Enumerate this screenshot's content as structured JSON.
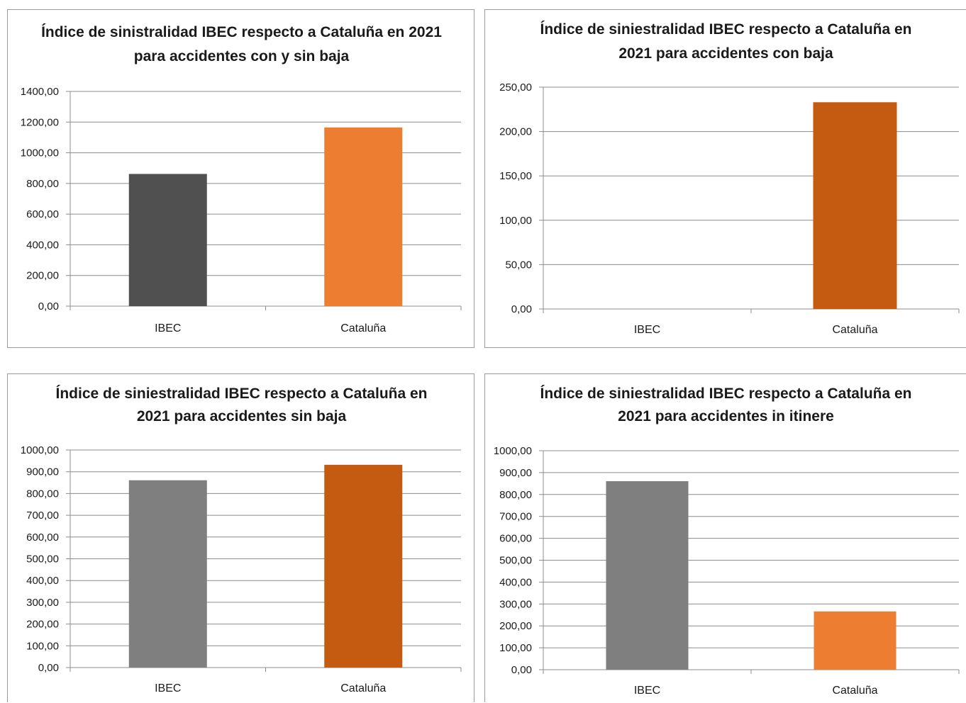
{
  "chart_data": [
    {
      "type": "bar",
      "title": [
        "Índice de sinistralidad IBEC respecto a Cataluña en 2021",
        "para accidentes con y sin baja"
      ],
      "categories": [
        "IBEC",
        "Cataluña"
      ],
      "values": [
        862,
        1165
      ],
      "colors": [
        "#505050",
        "#ED7D31"
      ],
      "ylim": [
        0,
        1400
      ],
      "yticks": [
        0,
        200,
        400,
        600,
        800,
        1000,
        1200,
        1400
      ],
      "ytick_labels": [
        "0,00",
        "200,00",
        "400,00",
        "600,00",
        "800,00",
        "1000,00",
        "1200,00",
        "1400,00"
      ],
      "xlabel": "",
      "ylabel": "",
      "grid": true,
      "legend": "none"
    },
    {
      "type": "bar",
      "title": [
        "Índice de siniestralidad IBEC respecto a Cataluña en",
        "2021 para accidentes con baja"
      ],
      "categories": [
        "IBEC",
        "Cataluña"
      ],
      "values": [
        0,
        233
      ],
      "colors": [
        "#505050",
        "#C55A11"
      ],
      "ylim": [
        0,
        250
      ],
      "yticks": [
        0,
        50,
        100,
        150,
        200,
        250
      ],
      "ytick_labels": [
        "0,00",
        "50,00",
        "100,00",
        "150,00",
        "200,00",
        "250,00"
      ],
      "xlabel": "",
      "ylabel": "",
      "grid": true,
      "legend": "none"
    },
    {
      "type": "bar",
      "title": [
        "Índice de siniestralidad IBEC respecto a Cataluña en",
        "2021 para accidentes sin baja"
      ],
      "categories": [
        "IBEC",
        "Cataluña"
      ],
      "values": [
        861,
        932
      ],
      "colors": [
        "#7F7F7F",
        "#C55A11"
      ],
      "ylim": [
        0,
        1000
      ],
      "yticks": [
        0,
        100,
        200,
        300,
        400,
        500,
        600,
        700,
        800,
        900,
        1000
      ],
      "ytick_labels": [
        "0,00",
        "100,00",
        "200,00",
        "300,00",
        "400,00",
        "500,00",
        "600,00",
        "700,00",
        "800,00",
        "900,00",
        "1000,00"
      ],
      "xlabel": "",
      "ylabel": "",
      "grid": true,
      "legend": "none"
    },
    {
      "type": "bar",
      "title": [
        "Índice de siniestralidad IBEC respecto a Cataluña en",
        "2021 para accidentes in itinere"
      ],
      "categories": [
        "IBEC",
        "Cataluña"
      ],
      "values": [
        861,
        266
      ],
      "colors": [
        "#7F7F7F",
        "#ED7D31"
      ],
      "ylim": [
        0,
        1000
      ],
      "yticks": [
        0,
        100,
        200,
        300,
        400,
        500,
        600,
        700,
        800,
        900,
        1000
      ],
      "ytick_labels": [
        "0,00",
        "100,00",
        "200,00",
        "300,00",
        "400,00",
        "500,00",
        "600,00",
        "700,00",
        "800,00",
        "900,00",
        "1000,00"
      ],
      "xlabel": "",
      "ylabel": "",
      "grid": true,
      "legend": "none"
    }
  ]
}
